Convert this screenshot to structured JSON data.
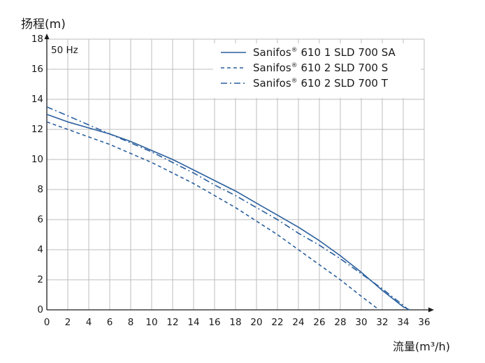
{
  "chart_data": {
    "type": "line",
    "ylabel": "扬程(m)",
    "xlabel": "流量(m³/h)",
    "annotation": "50 Hz",
    "xlim": [
      0,
      36
    ],
    "ylim": [
      0,
      18
    ],
    "x_ticks": [
      0,
      2,
      4,
      6,
      8,
      10,
      12,
      14,
      16,
      18,
      20,
      22,
      24,
      26,
      28,
      30,
      32,
      34,
      36
    ],
    "y_ticks": [
      0,
      2,
      4,
      6,
      8,
      10,
      12,
      14,
      16,
      18
    ],
    "grid": true,
    "legend_position": "top-right",
    "colors": {
      "series": "#2a5f9e",
      "grid": "#bdbdbd",
      "axis": "#1a1a1a"
    },
    "series": [
      {
        "name_main": "Sanifos",
        "name_mark": "®",
        "name_rest": " 610 1 SLD 700 SA",
        "style": "solid",
        "x": [
          0,
          2,
          4,
          6,
          8,
          10,
          12,
          14,
          16,
          18,
          20,
          22,
          24,
          26,
          28,
          30,
          32,
          34,
          34.6
        ],
        "y": [
          13.0,
          12.5,
          12.1,
          11.7,
          11.2,
          10.6,
          10.0,
          9.3,
          8.6,
          7.9,
          7.1,
          6.3,
          5.5,
          4.6,
          3.6,
          2.5,
          1.3,
          0.2,
          0
        ]
      },
      {
        "name_main": "Sanifos",
        "name_mark": "®",
        "name_rest": " 610 2 SLD 700 S",
        "style": "dashed",
        "x": [
          0,
          2,
          4,
          6,
          8,
          10,
          12,
          14,
          16,
          18,
          20,
          22,
          24,
          26,
          28,
          30,
          31.7
        ],
        "y": [
          12.5,
          12.0,
          11.5,
          11.0,
          10.4,
          9.8,
          9.1,
          8.4,
          7.6,
          6.8,
          5.9,
          5.0,
          4.0,
          3.0,
          2.0,
          0.9,
          0
        ]
      },
      {
        "name_main": "Sanifos",
        "name_mark": "®",
        "name_rest": " 610 2 SLD 700 T",
        "style": "dashdot",
        "x": [
          0,
          2,
          4,
          6,
          8,
          10,
          12,
          14,
          16,
          18,
          20,
          22,
          24,
          26,
          28,
          30,
          32,
          34,
          34.5
        ],
        "y": [
          13.5,
          12.9,
          12.3,
          11.7,
          11.1,
          10.5,
          9.8,
          9.1,
          8.3,
          7.6,
          6.8,
          6.0,
          5.1,
          4.3,
          3.4,
          2.4,
          1.4,
          0.3,
          0
        ]
      }
    ]
  }
}
